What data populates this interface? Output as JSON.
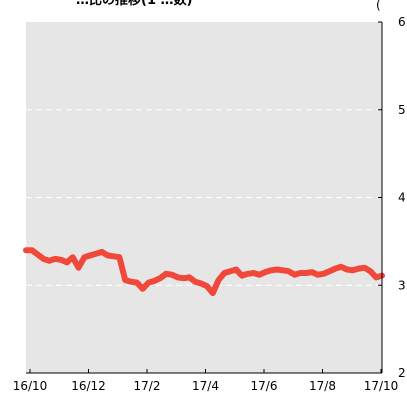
{
  "chart_data": {
    "type": "line",
    "title": "…比の推移(1 …数)",
    "ylabel": "(",
    "x_ticks": [
      "16/10",
      "16/12",
      "17/2",
      "17/4",
      "17/6",
      "17/8",
      "17/10"
    ],
    "y_ticks": [
      "6",
      "5",
      "4",
      "3",
      "2"
    ],
    "ylim": [
      20,
      60
    ],
    "grid": "horizontal-dashed",
    "line_color": "#f0483a",
    "plot_background": "#e6e6e6",
    "series": [
      {
        "values": [
          34.0,
          34.0,
          33.5,
          33.0,
          32.8,
          33.0,
          32.9,
          32.6,
          33.2,
          32.0,
          33.2,
          33.4,
          33.6,
          33.8,
          33.4,
          33.3,
          33.2,
          30.6,
          30.4,
          30.3,
          29.6,
          30.3,
          30.5,
          30.8,
          31.3,
          31.2,
          30.9,
          30.8,
          30.9,
          30.4,
          30.2,
          29.9,
          29.1,
          30.6,
          31.4,
          31.6,
          31.8,
          31.1,
          31.3,
          31.4,
          31.2,
          31.5,
          31.7,
          31.8,
          31.7,
          31.6,
          31.2,
          31.4,
          31.4,
          31.5,
          31.2,
          31.3,
          31.6,
          31.9,
          32.1,
          31.8,
          31.7,
          31.9,
          32.0,
          31.6,
          30.9,
          31.1
        ]
      }
    ]
  }
}
